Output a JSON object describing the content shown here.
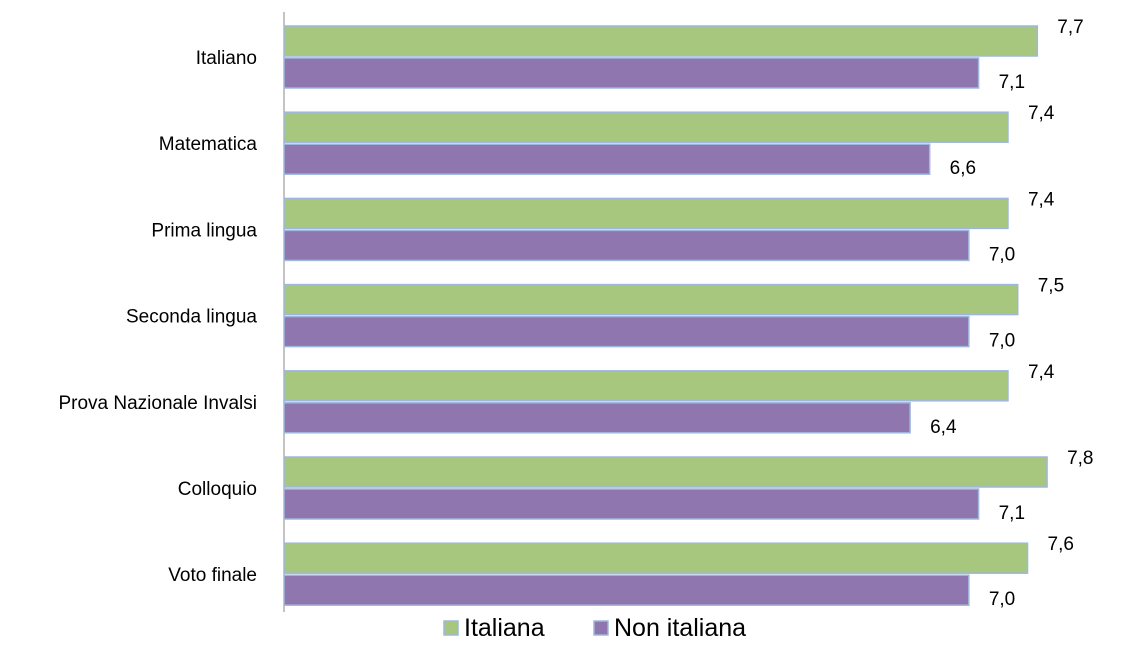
{
  "chart_data": {
    "type": "bar",
    "orientation": "horizontal",
    "categories": [
      "Italiano",
      "Matematica",
      "Prima lingua",
      "Seconda lingua",
      "Prova Nazionale Invalsi",
      "Colloquio",
      "Voto finale"
    ],
    "series": [
      {
        "name": "Italiana",
        "values": [
          7.7,
          7.4,
          7.4,
          7.5,
          7.4,
          7.8,
          7.6
        ],
        "labels": [
          "7,7",
          "7,4",
          "7,4",
          "7,5",
          "7,4",
          "7,8",
          "7,6"
        ],
        "color": "#a7c77f",
        "border": "#9fb7dc"
      },
      {
        "name": "Non italiana",
        "values": [
          7.1,
          6.6,
          7.0,
          7.0,
          6.4,
          7.1,
          7.0
        ],
        "labels": [
          "7,1",
          "6,6",
          "7,0",
          "7,0",
          "6,4",
          "7,1",
          "7,0"
        ],
        "color": "#8f76ae",
        "border": "#9fb7dc"
      }
    ],
    "xlim": [
      0,
      8.3
    ],
    "title": "",
    "xlabel": "",
    "ylabel": "",
    "grid": false,
    "legend_position": "bottom"
  }
}
